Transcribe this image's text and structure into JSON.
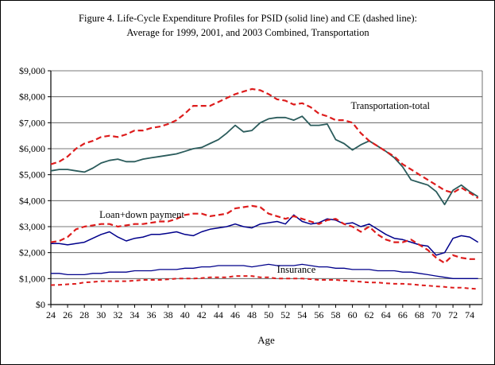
{
  "figure": {
    "title_line1": "Figure 4. Life-Cycle Expenditure Profiles for PSID (solid line) and CE (dashed line):",
    "title_line2": "Average for 1999, 2001, and 2003 Combined, Transportation"
  },
  "chart_data": {
    "type": "line",
    "title": "Figure 4. Life-Cycle Expenditure Profiles for PSID (solid line) and CE (dashed line): Average for 1999, 2001, and 2003 Combined, Transportation",
    "xlabel": "Age",
    "ylabel": "",
    "ylim": [
      0,
      9000
    ],
    "y_tick_step": 1000,
    "y_tick_labels": [
      "$0",
      "$1,000",
      "$2,000",
      "$3,000",
      "$4,000",
      "$5,000",
      "$6,000",
      "$7,000",
      "$8,000",
      "$9,000"
    ],
    "x_range": [
      24,
      75.5
    ],
    "x_ticks": [
      24,
      26,
      28,
      30,
      32,
      34,
      36,
      38,
      40,
      42,
      44,
      46,
      48,
      50,
      52,
      54,
      56,
      58,
      60,
      62,
      64,
      66,
      68,
      70,
      72,
      74
    ],
    "grid": "horizontal",
    "legend_position": "none",
    "x": [
      24,
      25,
      26,
      27,
      28,
      29,
      30,
      31,
      32,
      33,
      34,
      35,
      36,
      37,
      38,
      39,
      40,
      41,
      42,
      43,
      44,
      45,
      46,
      47,
      48,
      49,
      50,
      51,
      52,
      53,
      54,
      55,
      56,
      57,
      58,
      59,
      60,
      61,
      62,
      63,
      64,
      65,
      66,
      67,
      68,
      69,
      70,
      71,
      72,
      73,
      74,
      75
    ],
    "series": [
      {
        "name": "Transportation-total PSID",
        "style": "solid",
        "color": "#2a5b5b",
        "width": 1.8,
        "dash": null,
        "values": [
          5150,
          5200,
          5200,
          5150,
          5100,
          5250,
          5450,
          5550,
          5600,
          5500,
          5500,
          5600,
          5650,
          5700,
          5750,
          5800,
          5900,
          6000,
          6050,
          6200,
          6350,
          6600,
          6900,
          6650,
          6700,
          7000,
          7150,
          7200,
          7200,
          7100,
          7250,
          6900,
          6900,
          6950,
          6350,
          6200,
          5950,
          6150,
          6300,
          6100,
          5900,
          5650,
          5300,
          4800,
          4700,
          4600,
          4350,
          3850,
          4400,
          4600,
          4350,
          4150
        ]
      },
      {
        "name": "Transportation-total CE",
        "style": "dashed",
        "color": "#dd1c1c",
        "width": 2.2,
        "dash": "7 4",
        "values": [
          5400,
          5500,
          5700,
          6000,
          6200,
          6300,
          6450,
          6500,
          6450,
          6550,
          6700,
          6700,
          6800,
          6850,
          6950,
          7100,
          7350,
          7650,
          7650,
          7650,
          7800,
          7950,
          8100,
          8200,
          8300,
          8250,
          8100,
          7900,
          7850,
          7700,
          7750,
          7600,
          7350,
          7250,
          7100,
          7100,
          7000,
          6600,
          6300,
          6100,
          5900,
          5700,
          5400,
          5200,
          5000,
          4800,
          4600,
          4400,
          4300,
          4500,
          4300,
          4100
        ]
      },
      {
        "name": "Loan+down payment PSID",
        "style": "solid",
        "color": "#00008b",
        "width": 1.5,
        "dash": null,
        "values": [
          2350,
          2350,
          2300,
          2350,
          2400,
          2550,
          2700,
          2800,
          2600,
          2450,
          2550,
          2600,
          2700,
          2700,
          2750,
          2800,
          2700,
          2650,
          2800,
          2900,
          2950,
          3000,
          3100,
          3000,
          2950,
          3100,
          3150,
          3200,
          3100,
          3450,
          3200,
          3100,
          3150,
          3300,
          3250,
          3100,
          3150,
          3000,
          3100,
          2900,
          2700,
          2550,
          2500,
          2400,
          2300,
          2250,
          1900,
          2000,
          2550,
          2650,
          2600,
          2400
        ]
      },
      {
        "name": "Loan+down payment CE",
        "style": "dashed",
        "color": "#dd1c1c",
        "width": 2.2,
        "dash": "7 4",
        "values": [
          2400,
          2450,
          2600,
          2900,
          3000,
          3050,
          3100,
          3100,
          3000,
          3050,
          3100,
          3100,
          3150,
          3200,
          3200,
          3300,
          3450,
          3500,
          3500,
          3400,
          3450,
          3500,
          3700,
          3750,
          3800,
          3750,
          3500,
          3400,
          3300,
          3400,
          3300,
          3200,
          3100,
          3250,
          3300,
          3100,
          3000,
          2800,
          3000,
          2700,
          2500,
          2400,
          2400,
          2500,
          2300,
          2100,
          1800,
          1600,
          1900,
          1800,
          1750,
          1750
        ]
      },
      {
        "name": "Insurance PSID",
        "style": "solid",
        "color": "#00008b",
        "width": 1.3,
        "dash": null,
        "values": [
          1200,
          1200,
          1150,
          1150,
          1150,
          1200,
          1200,
          1250,
          1250,
          1250,
          1300,
          1300,
          1300,
          1350,
          1350,
          1350,
          1400,
          1400,
          1450,
          1450,
          1500,
          1500,
          1500,
          1500,
          1450,
          1500,
          1550,
          1500,
          1500,
          1500,
          1550,
          1500,
          1450,
          1450,
          1400,
          1400,
          1350,
          1350,
          1350,
          1300,
          1300,
          1300,
          1250,
          1250,
          1200,
          1150,
          1100,
          1050,
          1000,
          1000,
          1000,
          1000
        ]
      },
      {
        "name": "Insurance CE",
        "style": "dashed",
        "color": "#dd1c1c",
        "width": 2.0,
        "dash": "5 4",
        "values": [
          750,
          760,
          780,
          800,
          850,
          870,
          900,
          900,
          900,
          900,
          920,
          950,
          950,
          950,
          970,
          1000,
          1000,
          1000,
          1020,
          1050,
          1050,
          1050,
          1100,
          1100,
          1100,
          1050,
          1050,
          1000,
          1000,
          1000,
          1000,
          980,
          950,
          950,
          950,
          920,
          900,
          880,
          850,
          850,
          820,
          800,
          800,
          780,
          750,
          730,
          700,
          680,
          650,
          650,
          620,
          600
        ]
      }
    ],
    "annotations": [
      {
        "text": "Transportation-total",
        "age": 59.8,
        "value": 7650
      },
      {
        "text": "Loan+down payment",
        "age": 29.8,
        "value": 3460
      },
      {
        "text": "Insurance",
        "age": 51.0,
        "value": 1350
      }
    ]
  }
}
